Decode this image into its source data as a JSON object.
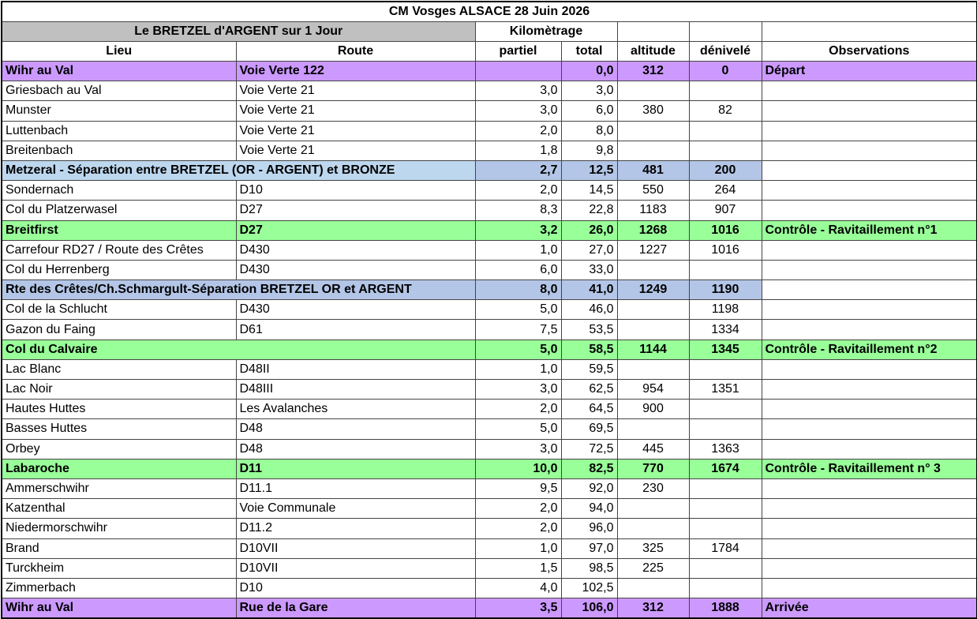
{
  "header": {
    "title": "CM Vosges ALSACE 28 Juin 2026",
    "subtitle": "Le BRETZEL d'ARGENT sur 1  Jour",
    "km": "Kilomètrage",
    "subtitle_color": "#c0c0c0"
  },
  "columns": [
    "Lieu",
    "Route",
    "partiel",
    "total",
    "altitude",
    "dénivelé",
    "Observations"
  ],
  "rows": [
    {
      "lieu": "Wihr au Val",
      "route": "Voie Verte 122",
      "total": "0,0",
      "altitude": "312",
      "denivele": "0",
      "observations": "Départ",
      "color": "#cc99ff"
    },
    {
      "lieu": "Griesbach au Val",
      "route": "Voie Verte 21",
      "partiel": "3,0",
      "total": "3,0"
    },
    {
      "lieu": "Munster",
      "route": "Voie Verte 21",
      "partiel": "3,0",
      "total": "6,0",
      "altitude": "380",
      "denivele": "82"
    },
    {
      "lieu": "Luttenbach",
      "route": "Voie Verte 21",
      "partiel": "2,0",
      "total": "8,0"
    },
    {
      "lieu": "Breitenbach",
      "route": "Voie Verte 21",
      "partiel": "1,8",
      "total": "9,8"
    },
    {
      "lieu": "Metzeral - Séparation entre BRETZEL (OR - ARGENT) et BRONZE",
      "partiel": "2,7",
      "total": "12,5",
      "altitude": "481",
      "denivele": "200",
      "color": "#b4c6e7",
      "lieu_color": "#bdd7ee"
    },
    {
      "lieu": "Sondernach",
      "route": "D10",
      "partiel": "2,0",
      "total": "14,5",
      "altitude": "550",
      "denivele": "264"
    },
    {
      "lieu": "Col du Platzerwasel",
      "route": "D27",
      "partiel": "8,3",
      "total": "22,8",
      "altitude": "1183",
      "denivele": "907"
    },
    {
      "lieu": "Breitfirst",
      "route": "D27",
      "partiel": "3,2",
      "total": "26,0",
      "altitude": "1268",
      "denivele": "1016",
      "observations": "Contrôle - Ravitaillement n°1",
      "color": "#99ff99"
    },
    {
      "lieu": "Carrefour RD27  / Route des Crêtes",
      "route": "D430",
      "partiel": "1,0",
      "total": "27,0",
      "altitude": "1227",
      "denivele": "1016"
    },
    {
      "lieu": "Col du Herrenberg",
      "route": "D430",
      "partiel": "6,0",
      "total": "33,0"
    },
    {
      "lieu": "Rte des Crêtes/Ch.Schmargult-Séparation BRETZEL OR et ARGENT",
      "partiel": "8,0",
      "total": "41,0",
      "altitude": "1249",
      "denivele": "1190",
      "color": "#b4c6e7"
    },
    {
      "lieu": "Col de la Schlucht",
      "route": "D430",
      "partiel": "5,0",
      "total": "46,0",
      "denivele": "1198"
    },
    {
      "lieu": "Gazon du Faing",
      "route": "D61",
      "partiel": "7,5",
      "total": "53,5",
      "denivele": "1334"
    },
    {
      "lieu": "Col du Calvaire",
      "partiel": "5,0",
      "total": "58,5",
      "altitude": "1144",
      "denivele": "1345",
      "observations": "Contrôle - Ravitaillement n°2",
      "color": "#99ff99"
    },
    {
      "lieu": "Lac Blanc",
      "route": "D48II",
      "partiel": "1,0",
      "total": "59,5"
    },
    {
      "lieu": "Lac Noir",
      "route": "D48III",
      "partiel": "3,0",
      "total": "62,5",
      "altitude": "954",
      "denivele": "1351"
    },
    {
      "lieu": "Hautes Huttes",
      "route": "Les Avalanches",
      "partiel": "2,0",
      "total": "64,5",
      "altitude": "900"
    },
    {
      "lieu": "Basses Huttes",
      "route": "D48",
      "partiel": "5,0",
      "total": "69,5"
    },
    {
      "lieu": "Orbey",
      "route": "D48",
      "partiel": "3,0",
      "total": "72,5",
      "altitude": "445",
      "denivele": "1363"
    },
    {
      "lieu": "Labaroche",
      "route": "D11",
      "partiel": "10,0",
      "total": "82,5",
      "altitude": "770",
      "denivele": "1674",
      "observations": "Contrôle - Ravitaillement n° 3",
      "color": "#99ff99"
    },
    {
      "lieu": "Ammerschwihr",
      "route": "D11.1",
      "partiel": "9,5",
      "total": "92,0",
      "altitude": "230"
    },
    {
      "lieu": "Katzenthal",
      "route": "Voie Communale",
      "partiel": "2,0",
      "total": "94,0"
    },
    {
      "lieu": "Niedermorschwihr",
      "route": "D11.2",
      "partiel": "2,0",
      "total": "96,0"
    },
    {
      "lieu": "Brand",
      "route": "D10VII",
      "partiel": "1,0",
      "total": "97,0",
      "altitude": "325",
      "denivele": "1784"
    },
    {
      "lieu": "Turckheim",
      "route": "D10VII",
      "partiel": "1,5",
      "total": "98,5",
      "altitude": "225"
    },
    {
      "lieu": "Zimmerbach",
      "route": "D10",
      "partiel": "4,0",
      "total": "102,5"
    },
    {
      "lieu": "Wihr au Val",
      "route": "Rue de la Gare",
      "partiel": "3,5",
      "total": "106,0",
      "altitude": "312",
      "denivele": "1888",
      "observations": "Arrivée",
      "color": "#cc99ff"
    }
  ]
}
